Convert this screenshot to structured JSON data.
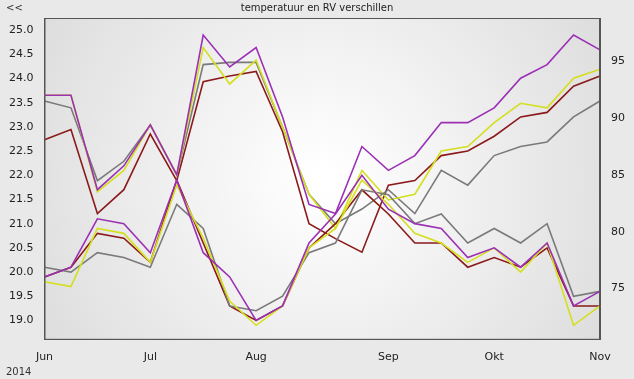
{
  "chart_data": {
    "type": "line",
    "title": "temperatuur en RV verschillen",
    "annotations": [
      "<<",
      "2014"
    ],
    "categories": [
      "Jun",
      null,
      null,
      null,
      "Jul",
      null,
      null,
      null,
      "Aug",
      null,
      null,
      null,
      null,
      "Sep",
      null,
      null,
      null,
      "Okt",
      null,
      null,
      null,
      "Nov"
    ],
    "ylim": [
      18.6,
      25.25
    ],
    "yticks": [
      {
        "value": 19,
        "label": "19.0"
      },
      19.5,
      {
        "value": 20,
        "label": "20.0"
      },
      20.5,
      {
        "value": 21,
        "label": "21.0"
      },
      21.5,
      {
        "value": 22,
        "label": "22.0"
      },
      22.5,
      {
        "value": 23,
        "label": "23.0"
      },
      23.5,
      {
        "value": 24,
        "label": "24.0"
      },
      24.5,
      {
        "value": 25,
        "label": "25.0"
      }
    ],
    "y2lim": [
      70.5,
      98.8
    ],
    "y2ticks": [
      75,
      80,
      85,
      90,
      95
    ],
    "grid": false,
    "marker": "none",
    "series": [
      {
        "color": "#9b30b5",
        "values": [
          19.9,
          20.1,
          21.1,
          21.0,
          20.4,
          21.9,
          20.4,
          19.9,
          19.0,
          19.3,
          20.6,
          21.2,
          22.0,
          21.3,
          21.0,
          20.9,
          20.3,
          20.5,
          20.1,
          20.6,
          19.3,
          19.6
        ]
      },
      {
        "color": "#d4df1e",
        "values": [
          19.8,
          19.7,
          20.9,
          20.8,
          20.2,
          21.8,
          20.7,
          19.4,
          18.9,
          19.3,
          20.5,
          20.9,
          21.9,
          21.4,
          20.8,
          20.6,
          20.2,
          20.5,
          20.0,
          20.6,
          18.9,
          19.3
        ]
      },
      {
        "color": "#7a7a7a",
        "values": [
          20.1,
          20.0,
          20.4,
          20.3,
          20.1,
          21.4,
          20.9,
          19.3,
          19.2,
          19.5,
          20.4,
          20.6,
          21.7,
          21.6,
          21.0,
          21.2,
          20.6,
          20.9,
          20.6,
          21.0,
          19.5,
          19.6
        ]
      },
      {
        "color": "#8b1a1a",
        "values": [
          19.9,
          20.1,
          20.8,
          20.7,
          20.2,
          21.9,
          20.6,
          19.3,
          19.0,
          19.3,
          20.5,
          21.0,
          21.7,
          21.2,
          20.6,
          20.6,
          20.1,
          20.3,
          20.1,
          20.5,
          19.3,
          19.3
        ]
      },
      {
        "color": "#9b30b5",
        "axis": "y2",
        "values": [
          92.0,
          92.0,
          83.7,
          85.8,
          89.4,
          85.0,
          97.3,
          94.5,
          96.2,
          90.1,
          82.4,
          81.6,
          87.5,
          85.4,
          86.7,
          89.6,
          89.6,
          90.9,
          93.5,
          94.7,
          97.3,
          96.0
        ]
      },
      {
        "color": "#d4df1e",
        "axis": "y2",
        "values": [
          92.0,
          92.0,
          83.5,
          85.4,
          89.4,
          85.0,
          96.2,
          93.0,
          95.1,
          89.2,
          83.3,
          80.3,
          85.4,
          82.8,
          83.3,
          87.1,
          87.5,
          89.6,
          91.3,
          90.9,
          93.5,
          94.3
        ]
      },
      {
        "color": "#7a7a7a",
        "axis": "y2",
        "values": [
          91.5,
          90.9,
          84.5,
          86.2,
          89.4,
          85.0,
          94.7,
          94.9,
          94.9,
          89.2,
          83.3,
          80.7,
          82.0,
          83.7,
          81.6,
          85.4,
          84.1,
          86.7,
          87.5,
          87.9,
          90.1,
          91.5
        ]
      },
      {
        "color": "#8b1a1a",
        "axis": "y2",
        "values": [
          88.1,
          89.0,
          81.6,
          83.7,
          88.6,
          84.5,
          93.2,
          93.7,
          94.1,
          88.8,
          80.7,
          79.4,
          78.2,
          84.1,
          84.5,
          86.7,
          87.1,
          88.4,
          90.1,
          90.5,
          92.8,
          93.7
        ]
      }
    ]
  }
}
